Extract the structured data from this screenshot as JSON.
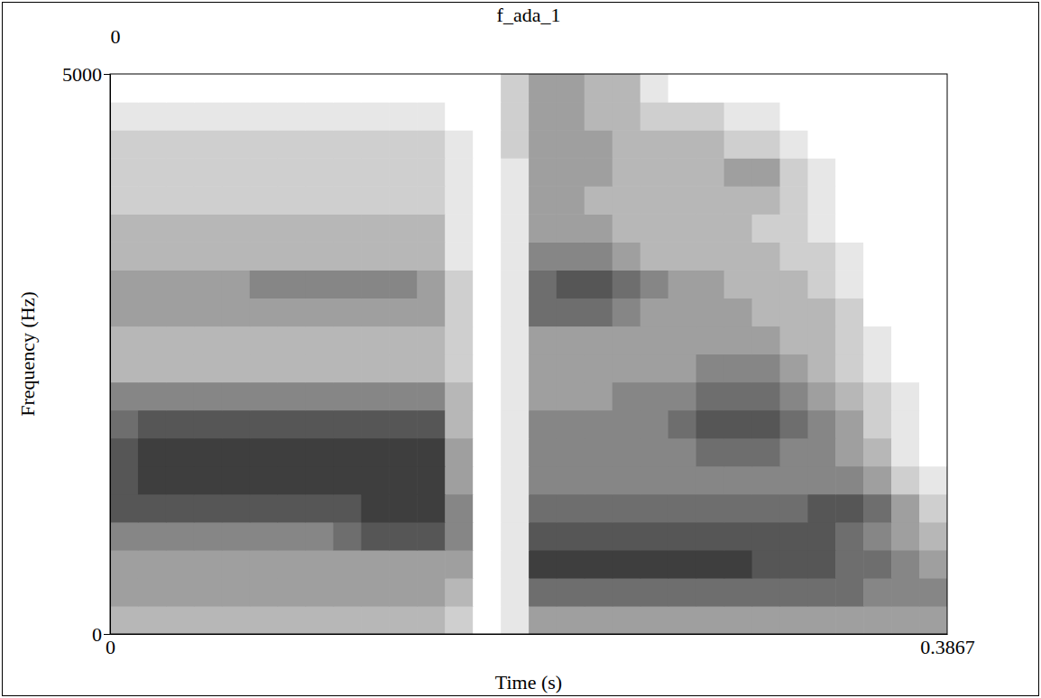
{
  "chart_data": {
    "type": "heatmap",
    "title": "f_ada_1",
    "top_label": "0",
    "x_label": "Time (s)",
    "y_label": "Frequency (Hz)",
    "xlim": [
      0,
      0.3867
    ],
    "ylim": [
      0,
      5000
    ],
    "xticks": [
      0,
      0.3867
    ],
    "yticks": [
      0,
      5000
    ],
    "zlim": [
      0,
      9
    ],
    "x_bins": [
      0,
      0.0129,
      0.0258,
      0.0387,
      0.0516,
      0.0645,
      0.0773,
      0.0902,
      0.1031,
      0.116,
      0.1289,
      0.1418,
      0.1547,
      0.1676,
      0.1805,
      0.1934,
      0.2062,
      0.2191,
      0.232,
      0.2449,
      0.2578,
      0.2707,
      0.2836,
      0.2965,
      0.3094,
      0.3223,
      0.3351,
      0.348,
      0.3609,
      0.3738,
      0.3867
    ],
    "y_bins": [
      0,
      250,
      500,
      750,
      1000,
      1250,
      1500,
      1750,
      2000,
      2250,
      2500,
      2750,
      3000,
      3250,
      3500,
      3750,
      4000,
      4250,
      4500,
      4750,
      5000
    ],
    "cells": [
      [
        3,
        3,
        3,
        3,
        3,
        3,
        3,
        3,
        3,
        3,
        3,
        3,
        2,
        0,
        1,
        4,
        4,
        4,
        4,
        4,
        4,
        4,
        4,
        4,
        4,
        4,
        4,
        4,
        4,
        4
      ],
      [
        4,
        4,
        4,
        4,
        4,
        4,
        4,
        4,
        4,
        4,
        4,
        4,
        3,
        0,
        1,
        6,
        6,
        6,
        6,
        6,
        6,
        6,
        6,
        6,
        6,
        6,
        6,
        5,
        5,
        5
      ],
      [
        4,
        4,
        4,
        4,
        4,
        4,
        4,
        4,
        4,
        4,
        4,
        4,
        4,
        0,
        1,
        8,
        8,
        8,
        8,
        8,
        8,
        8,
        8,
        7,
        7,
        7,
        6,
        6,
        5,
        4
      ],
      [
        5,
        5,
        5,
        5,
        5,
        5,
        5,
        5,
        6,
        7,
        7,
        7,
        5,
        0,
        1,
        7,
        7,
        7,
        7,
        7,
        7,
        7,
        7,
        7,
        7,
        7,
        6,
        5,
        4,
        3
      ],
      [
        7,
        7,
        7,
        7,
        7,
        7,
        7,
        7,
        7,
        8,
        8,
        8,
        5,
        0,
        1,
        6,
        6,
        6,
        6,
        6,
        6,
        6,
        6,
        6,
        6,
        7,
        7,
        6,
        4,
        2
      ],
      [
        7,
        8,
        8,
        8,
        8,
        8,
        8,
        8,
        8,
        8,
        8,
        8,
        4,
        0,
        1,
        5,
        5,
        5,
        5,
        5,
        5,
        5,
        5,
        5,
        5,
        5,
        5,
        4,
        2,
        1
      ],
      [
        7,
        8,
        8,
        8,
        8,
        8,
        8,
        8,
        8,
        8,
        8,
        8,
        4,
        0,
        1,
        5,
        5,
        5,
        5,
        5,
        5,
        6,
        6,
        6,
        5,
        5,
        4,
        3,
        1,
        0
      ],
      [
        6,
        7,
        7,
        7,
        7,
        7,
        7,
        7,
        7,
        7,
        7,
        7,
        3,
        0,
        1,
        5,
        5,
        5,
        5,
        5,
        6,
        7,
        7,
        7,
        6,
        5,
        4,
        2,
        1,
        0
      ],
      [
        5,
        5,
        5,
        5,
        5,
        5,
        5,
        5,
        5,
        5,
        5,
        5,
        3,
        0,
        1,
        4,
        4,
        4,
        5,
        5,
        5,
        6,
        6,
        6,
        5,
        4,
        3,
        2,
        1,
        0
      ],
      [
        3,
        3,
        3,
        3,
        3,
        3,
        3,
        3,
        3,
        3,
        3,
        3,
        2,
        0,
        1,
        4,
        4,
        4,
        4,
        4,
        4,
        5,
        5,
        5,
        4,
        3,
        2,
        1,
        0,
        0
      ],
      [
        3,
        3,
        3,
        3,
        3,
        3,
        3,
        3,
        3,
        3,
        3,
        3,
        2,
        0,
        1,
        4,
        4,
        4,
        4,
        4,
        4,
        4,
        4,
        4,
        3,
        3,
        2,
        1,
        0,
        0
      ],
      [
        4,
        4,
        4,
        4,
        4,
        4,
        4,
        4,
        4,
        4,
        4,
        4,
        2,
        0,
        1,
        6,
        6,
        6,
        5,
        4,
        4,
        4,
        4,
        3,
        3,
        3,
        2,
        0,
        0,
        0
      ],
      [
        4,
        4,
        4,
        4,
        4,
        5,
        5,
        5,
        5,
        5,
        5,
        4,
        2,
        0,
        1,
        6,
        7,
        7,
        6,
        5,
        4,
        4,
        3,
        3,
        3,
        2,
        1,
        0,
        0,
        0
      ],
      [
        3,
        3,
        3,
        3,
        3,
        3,
        3,
        3,
        3,
        3,
        3,
        3,
        1,
        0,
        1,
        5,
        5,
        5,
        4,
        3,
        3,
        3,
        3,
        3,
        2,
        2,
        1,
        0,
        0,
        0
      ],
      [
        3,
        3,
        3,
        3,
        3,
        3,
        3,
        3,
        3,
        3,
        3,
        3,
        1,
        0,
        1,
        4,
        4,
        4,
        3,
        3,
        3,
        3,
        3,
        2,
        2,
        1,
        0,
        0,
        0,
        0
      ],
      [
        2,
        2,
        2,
        2,
        2,
        2,
        2,
        2,
        2,
        2,
        2,
        2,
        1,
        0,
        1,
        4,
        4,
        3,
        3,
        3,
        3,
        3,
        3,
        3,
        2,
        1,
        0,
        0,
        0,
        0
      ],
      [
        2,
        2,
        2,
        2,
        2,
        2,
        2,
        2,
        2,
        2,
        2,
        2,
        1,
        0,
        1,
        4,
        4,
        4,
        3,
        3,
        3,
        3,
        4,
        4,
        2,
        1,
        0,
        0,
        0,
        0
      ],
      [
        2,
        2,
        2,
        2,
        2,
        2,
        2,
        2,
        2,
        2,
        2,
        2,
        1,
        0,
        2,
        4,
        4,
        4,
        3,
        3,
        3,
        3,
        2,
        2,
        1,
        0,
        0,
        0,
        0,
        0
      ],
      [
        1,
        1,
        1,
        1,
        1,
        1,
        1,
        1,
        1,
        1,
        1,
        1,
        0,
        0,
        2,
        4,
        4,
        3,
        3,
        2,
        2,
        2,
        1,
        1,
        0,
        0,
        0,
        0,
        0,
        0
      ],
      [
        0,
        0,
        0,
        0,
        0,
        0,
        0,
        0,
        0,
        0,
        0,
        0,
        0,
        0,
        2,
        4,
        4,
        3,
        3,
        1,
        0,
        0,
        0,
        0,
        0,
        0,
        0,
        0,
        0,
        0
      ]
    ]
  }
}
